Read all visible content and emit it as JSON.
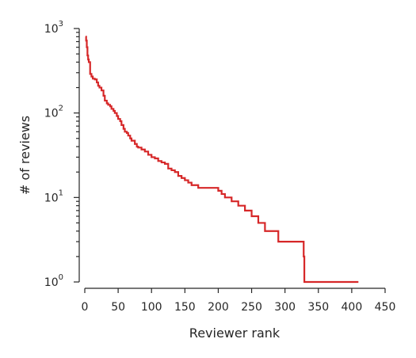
{
  "chart_data": {
    "type": "line",
    "title": "",
    "xlabel": "Reviewer rank",
    "ylabel": "# of reviews",
    "xlim": [
      0,
      450
    ],
    "ylim": [
      1,
      1000
    ],
    "yscale": "log",
    "grid": false,
    "xticks": [
      "0",
      "50",
      "100",
      "150",
      "200",
      "250",
      "300",
      "350",
      "400",
      "450"
    ],
    "yticks": [
      {
        "base": "10",
        "exp": "0"
      },
      {
        "base": "10",
        "exp": "1"
      },
      {
        "base": "10",
        "exp": "2"
      },
      {
        "base": "10",
        "exp": "3"
      }
    ],
    "series": [
      {
        "color": "#d62728",
        "x": [
          1,
          2,
          3,
          4,
          5,
          6,
          8,
          10,
          12,
          15,
          18,
          20,
          22,
          25,
          28,
          30,
          33,
          35,
          38,
          40,
          43,
          45,
          48,
          50,
          53,
          55,
          58,
          60,
          63,
          65,
          68,
          70,
          75,
          78,
          80,
          85,
          90,
          95,
          100,
          105,
          110,
          115,
          120,
          125,
          130,
          135,
          140,
          145,
          150,
          155,
          160,
          170,
          180,
          190,
          200,
          205,
          210,
          220,
          230,
          240,
          250,
          260,
          270,
          290,
          328,
          329,
          410
        ],
        "y": [
          800,
          720,
          600,
          480,
          430,
          400,
          290,
          270,
          255,
          250,
          230,
          210,
          200,
          185,
          160,
          140,
          130,
          125,
          120,
          112,
          106,
          100,
          92,
          85,
          80,
          72,
          65,
          60,
          58,
          54,
          50,
          47,
          43,
          40,
          39,
          37,
          35,
          32,
          30,
          29,
          27,
          26,
          25,
          22,
          21,
          20,
          18,
          17,
          16,
          15,
          14,
          13,
          13,
          13,
          12,
          11,
          10,
          9,
          8,
          7,
          6,
          5,
          4,
          3,
          2,
          1,
          1
        ]
      }
    ]
  }
}
